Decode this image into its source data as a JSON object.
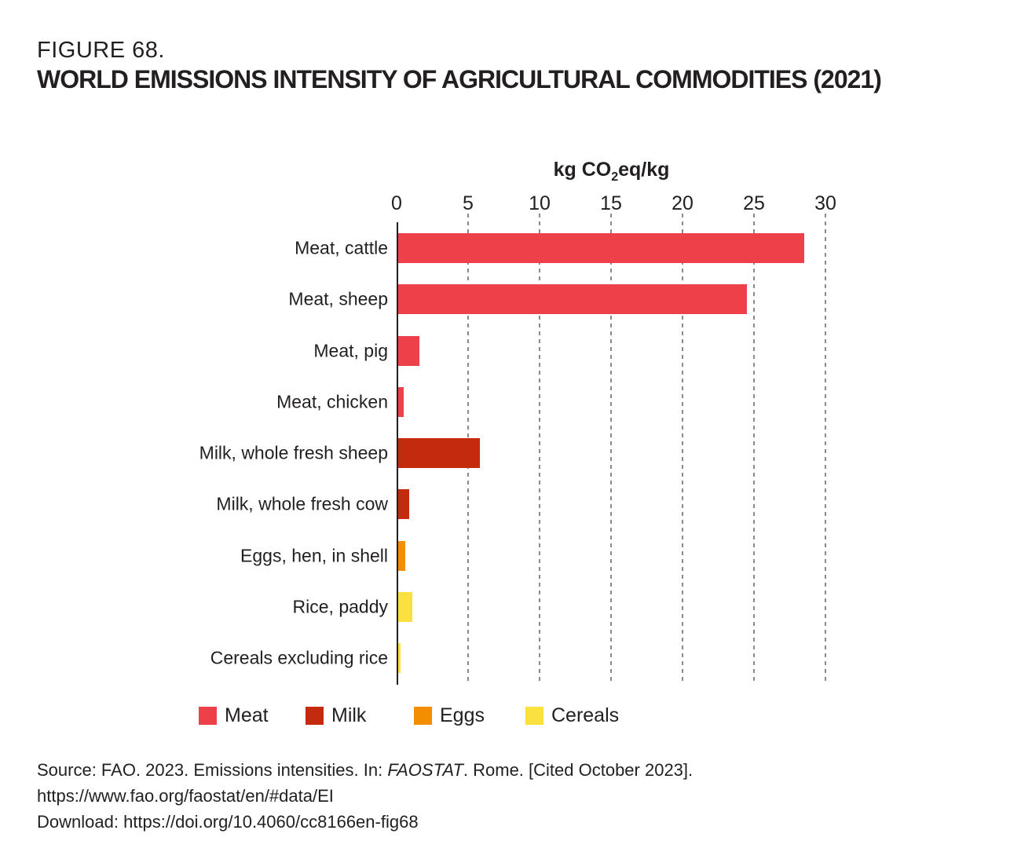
{
  "figure": {
    "label": "FIGURE 68.",
    "title": "WORLD EMISSIONS INTENSITY OF AGRICULTURAL COMMODITIES (2021)"
  },
  "chart_data": {
    "type": "bar",
    "orientation": "horizontal",
    "title": "WORLD EMISSIONS INTENSITY OF AGRICULTURAL COMMODITIES (2021)",
    "axis_title": {
      "pre": "kg CO",
      "sub": "2",
      "post": "eq/kg"
    },
    "x_ticks": [
      0,
      5,
      10,
      15,
      20,
      25,
      30
    ],
    "xlim": [
      0,
      30
    ],
    "grid": "dashed-vertical",
    "legend_position": "bottom",
    "categories": [
      "Meat, cattle",
      "Meat, sheep",
      "Meat, pig",
      "Meat, chicken",
      "Milk, whole fresh sheep",
      "Milk, whole fresh cow",
      "Eggs, hen, in shell",
      "Rice, paddy",
      "Cereals excluding rice"
    ],
    "values": [
      28.5,
      24.5,
      1.6,
      0.5,
      5.8,
      0.9,
      0.6,
      1.1,
      0.2
    ],
    "groups": [
      "Meat",
      "Meat",
      "Meat",
      "Meat",
      "Milk",
      "Milk",
      "Eggs",
      "Cereals",
      "Cereals"
    ],
    "legend": [
      {
        "label": "Meat",
        "color": "#EE4049"
      },
      {
        "label": "Milk",
        "color": "#C32B0C"
      },
      {
        "label": "Eggs",
        "color": "#F28E00"
      },
      {
        "label": "Cereals",
        "color": "#FAE13E"
      }
    ]
  },
  "colors": {
    "text": "#231F20",
    "gridline": "#8A8A8A",
    "axis": "#231F20"
  },
  "source": {
    "line1_pre": "Source: FAO. 2023. Emissions intensities. In: ",
    "line1_italic": "FAOSTAT",
    "line1_post": ". Rome. [Cited October 2023].",
    "line2": "https://www.fao.org/faostat/en/#data/EI",
    "line3": "Download: https://doi.org/10.4060/cc8166en-fig68"
  }
}
